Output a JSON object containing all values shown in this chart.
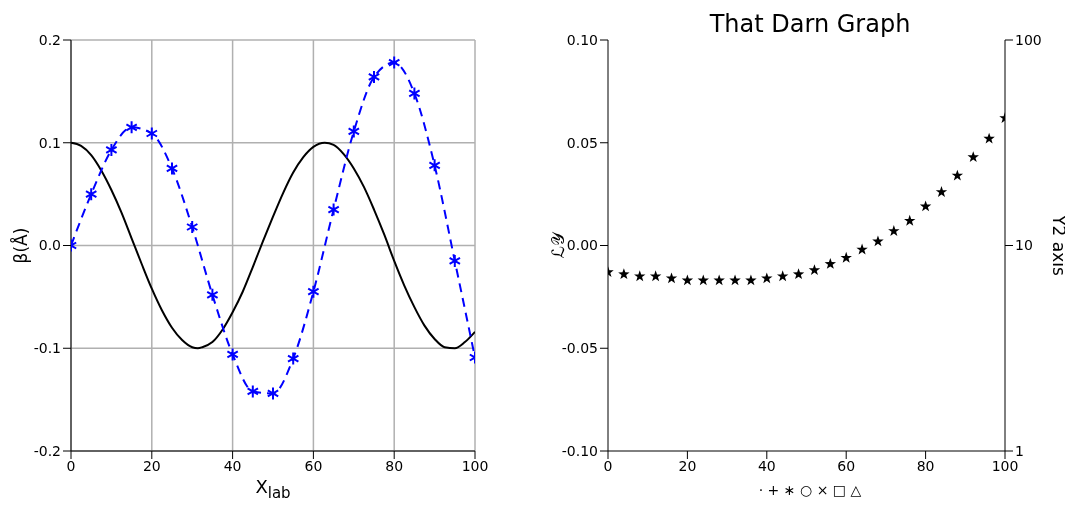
{
  "chart_data": [
    {
      "type": "line",
      "xlabel": "X$_{lab}$",
      "ylabel": "β(Å)",
      "xlim": [
        0,
        100
      ],
      "xticks": [
        0,
        20,
        40,
        60,
        80,
        100
      ],
      "ylim": [
        -0.2,
        0.2
      ],
      "yticks": [
        -0.2,
        -0.1,
        {
          "value": 0,
          "label": "0.0"
        },
        0.1,
        0.2
      ],
      "grid": true,
      "series": [
        {
          "color": "#000000",
          "line_style": "solid",
          "marker": "none",
          "x": [
            0,
            2.5,
            5,
            7.5,
            10,
            12.5,
            15,
            17.5,
            20,
            22.5,
            25,
            27.5,
            30,
            31.4,
            32.5,
            35,
            37.5,
            40,
            42.5,
            45,
            47.5,
            50,
            52.5,
            55,
            57.5,
            60,
            62.8,
            65,
            67.5,
            70,
            72.5,
            75,
            77.5,
            80,
            82.5,
            85,
            87.5,
            90,
            92.5,
            95,
            97.5,
            100
          ],
          "values": [
            0.1,
            0.097,
            0.088,
            0.073,
            0.054,
            0.032,
            0.007,
            -0.018,
            -0.042,
            -0.063,
            -0.08,
            -0.092,
            -0.099,
            -0.1,
            -0.099,
            -0.094,
            -0.082,
            -0.065,
            -0.045,
            -0.021,
            0.004,
            0.028,
            0.051,
            0.071,
            0.086,
            0.096,
            0.1,
            0.098,
            0.089,
            0.075,
            0.057,
            0.035,
            0.011,
            -0.015,
            -0.039,
            -0.06,
            -0.078,
            -0.091,
            -0.099,
            -0.1,
            -0.094,
            -0.084
          ]
        },
        {
          "color": "#0000ff",
          "line_style": "dashed",
          "marker": "cross",
          "x": [
            0,
            5,
            10,
            15,
            20,
            25,
            30,
            35,
            40,
            45,
            50,
            55,
            60,
            65,
            70,
            75,
            80,
            85,
            90,
            95,
            100
          ],
          "values": [
            0,
            0.05,
            0.093,
            0.115,
            0.109,
            0.075,
            0.018,
            -0.048,
            -0.106,
            -0.142,
            -0.144,
            -0.11,
            -0.045,
            0.035,
            0.111,
            0.164,
            0.178,
            0.148,
            0.078,
            -0.015,
            -0.109
          ]
        }
      ]
    },
    {
      "type": "scatter",
      "title": "That Darn Graph",
      "ylabel": "ℒ𝒴",
      "y2label": "Y2 axis",
      "annotations": [
        "· + ∗ ○ × □ △"
      ],
      "marker": "star",
      "xlim": [
        0,
        100
      ],
      "xticks": [
        0,
        20,
        40,
        60,
        80,
        100
      ],
      "ylim": [
        -0.1,
        0.1
      ],
      "yticks": [
        {
          "value": -0.1,
          "label": "-0.10"
        },
        {
          "value": -0.05,
          "label": "-0.05"
        },
        {
          "value": 0,
          "label": "0.00"
        },
        {
          "value": 0.05,
          "label": "0.05"
        },
        {
          "value": 0.1,
          "label": "0.10"
        }
      ],
      "y2lim": [
        1,
        100
      ],
      "y2ticks": [
        1,
        10,
        100
      ],
      "log": "y2",
      "series": [
        {
          "color": "#000000",
          "x": [
            0,
            4,
            8,
            12,
            16,
            20,
            24,
            28,
            32,
            36,
            40,
            44,
            48,
            52,
            56,
            60,
            64,
            68,
            72,
            76,
            80,
            84,
            88,
            92,
            96,
            100
          ],
          "values": [
            -0.013,
            -0.014,
            -0.015,
            -0.015,
            -0.016,
            -0.017,
            -0.017,
            -0.017,
            -0.017,
            -0.017,
            -0.016,
            -0.015,
            -0.014,
            -0.012,
            -0.009,
            -0.006,
            -0.002,
            0.002,
            0.007,
            0.012,
            0.019,
            0.026,
            0.034,
            0.043,
            0.052,
            0.062
          ]
        }
      ]
    }
  ]
}
